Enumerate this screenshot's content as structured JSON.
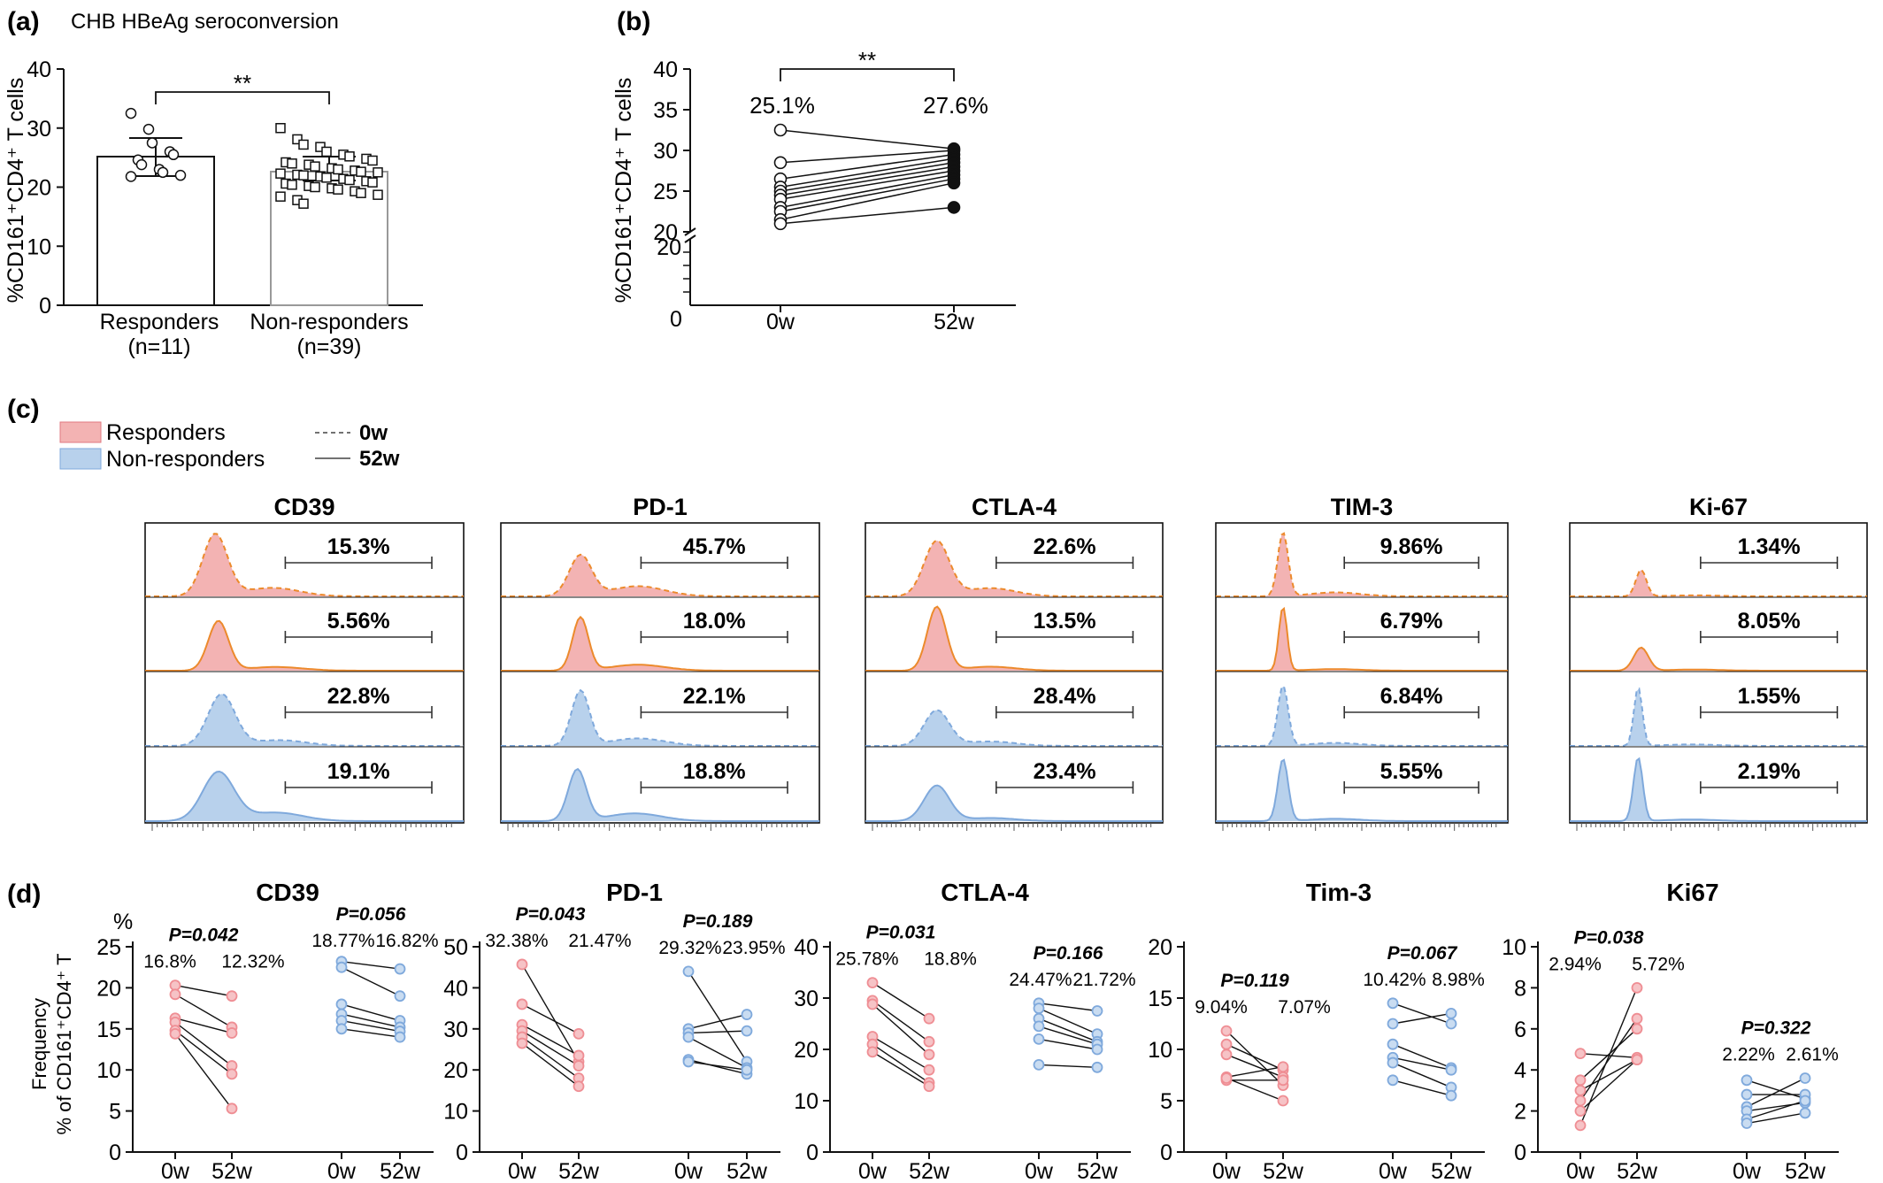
{
  "colors": {
    "responder_fill": "#f3b3b3",
    "responder_line": "#ec8a2c",
    "responder_dot": "#ef8e94",
    "nonresponder_fill": "#b8d1ec",
    "nonresponder_line": "#7fa9dc",
    "nonresponder_dot": "#7fa9dc",
    "axis": "#111111",
    "bar_gray": "#999999"
  },
  "panel_a": {
    "label": "(a)",
    "title": "CHB HBeAg seroconversion",
    "ylabel": "%CD161⁺CD4⁺ T cells",
    "yticks": [
      "0",
      "10",
      "20",
      "30",
      "40"
    ],
    "sig": "**",
    "groups": [
      {
        "name": "Responders",
        "n": "(n=11)"
      },
      {
        "name": "Non-responders",
        "n": "(n=39)"
      }
    ]
  },
  "panel_b": {
    "label": "(b)",
    "ylabel": "%CD161⁺CD4⁺ T cells",
    "yticks_upper": [
      "20",
      "25",
      "30",
      "35",
      "40"
    ],
    "yticks_lower": [
      "0",
      "20"
    ],
    "xlabels": [
      "0w",
      "52w"
    ],
    "sig": "**",
    "mean_labels": [
      "25.1%",
      "27.6%"
    ]
  },
  "panel_c": {
    "label": "(c)",
    "legend": {
      "responders": "Responders",
      "nonresponders": "Non-responders",
      "dashed": "0w",
      "solid": "52w"
    },
    "markers": [
      "CD39",
      "PD-1",
      "CTLA-4",
      "TIM-3",
      "Ki-67"
    ],
    "percents": [
      [
        "15.3%",
        "5.56%",
        "22.8%",
        "19.1%"
      ],
      [
        "45.7%",
        "18.0%",
        "22.1%",
        "18.8%"
      ],
      [
        "22.6%",
        "13.5%",
        "28.4%",
        "23.4%"
      ],
      [
        "9.86%",
        "6.79%",
        "6.84%",
        "5.55%"
      ],
      [
        "1.34%",
        "8.05%",
        "1.55%",
        "2.19%"
      ]
    ]
  },
  "panel_d": {
    "label": "(d)",
    "yunit": "%",
    "ylabel_line1": "Frequency",
    "ylabel_line2": "% of CD161⁺CD4⁺ T",
    "xlabels": [
      "0w",
      "52w",
      "0w",
      "52w"
    ],
    "titles": [
      "CD39",
      "PD-1",
      "CTLA-4",
      "Tim-3",
      "Ki67"
    ],
    "yticks": [
      [
        "0",
        "5",
        "10",
        "15",
        "20",
        "25"
      ],
      [
        "0",
        "10",
        "20",
        "30",
        "40",
        "50"
      ],
      [
        "0",
        "10",
        "20",
        "30",
        "40"
      ],
      [
        "0",
        "5",
        "10",
        "15",
        "20"
      ],
      [
        "0",
        "2",
        "4",
        "6",
        "8",
        "10"
      ]
    ],
    "pvalues": [
      [
        "P=0.042",
        "P=0.056"
      ],
      [
        "P=0.043",
        "P=0.189"
      ],
      [
        "P=0.031",
        "P=0.166"
      ],
      [
        "P=0.119",
        "P=0.067"
      ],
      [
        "P=0.038",
        "P=0.322"
      ]
    ],
    "means": [
      [
        "16.8%",
        "12.32%",
        "18.77%",
        "16.82%"
      ],
      [
        "32.38%",
        "21.47%",
        "29.32%",
        "23.95%"
      ],
      [
        "25.78%",
        "18.8%",
        "24.47%",
        "21.72%"
      ],
      [
        "9.04%",
        "7.07%",
        "10.42%",
        "8.98%"
      ],
      [
        "2.94%",
        "5.72%",
        "2.22%",
        "2.61%"
      ]
    ]
  },
  "chart_data": [
    {
      "type": "bar",
      "panel": "a",
      "categories": [
        "Responders (n=11)",
        "Non-responders (n=39)"
      ],
      "values": [
        25.1,
        22.6
      ],
      "error": [
        [
          21.8,
          28.3
        ],
        [
          21.0,
          24.6
        ]
      ],
      "ylabel": "%CD161⁺CD4⁺ T cells",
      "ylim": [
        0,
        40
      ],
      "points": {
        "Responders": [
          32.5,
          29.8,
          27.5,
          26.0,
          25.5,
          24.6,
          23.8,
          23.0,
          22.5,
          22.0,
          21.8
        ],
        "Non-responders": [
          30.0,
          28.1,
          27.2,
          26.8,
          26.0,
          25.5,
          25.2,
          24.8,
          24.5,
          24.2,
          24.0,
          23.8,
          23.5,
          23.2,
          23.0,
          22.8,
          22.6,
          22.5,
          22.3,
          22.1,
          22.0,
          21.8,
          21.6,
          21.4,
          21.2,
          21.0,
          20.8,
          20.6,
          20.4,
          20.2,
          20.0,
          19.8,
          19.6,
          19.3,
          19.0,
          18.7,
          18.4,
          17.8,
          17.2
        ]
      }
    },
    {
      "type": "line",
      "panel": "b",
      "x": [
        "0w",
        "52w"
      ],
      "ylabel": "%CD161⁺CD4⁺ T cells",
      "ylim": [
        20,
        40
      ],
      "pairs": [
        [
          32.5,
          30.2
        ],
        [
          28.5,
          30.0
        ],
        [
          26.5,
          29.5
        ],
        [
          25.5,
          29.0
        ],
        [
          25.0,
          28.5
        ],
        [
          24.5,
          28.0
        ],
        [
          24.0,
          27.5
        ],
        [
          23.0,
          27.0
        ],
        [
          22.5,
          26.5
        ],
        [
          21.5,
          26.0
        ],
        [
          21.0,
          23.0
        ]
      ]
    },
    {
      "type": "area",
      "panel": "c",
      "series": [
        "Responders 0w",
        "Responders 52w",
        "Non-responders 0w",
        "Non-responders 52w"
      ],
      "categories": [
        "CD39",
        "PD-1",
        "CTLA-4",
        "TIM-3",
        "Ki-67"
      ],
      "values": [
        [
          15.3,
          5.56,
          22.8,
          19.1
        ],
        [
          45.7,
          18.0,
          22.1,
          18.8
        ],
        [
          22.6,
          13.5,
          28.4,
          23.4
        ],
        [
          9.86,
          6.79,
          6.84,
          5.55
        ],
        [
          1.34,
          8.05,
          1.55,
          2.19
        ]
      ]
    },
    {
      "type": "line",
      "panel": "d",
      "x": [
        "0w",
        "52w"
      ],
      "panels": [
        {
          "title": "CD39",
          "ylim": [
            0,
            25
          ],
          "responders": [
            [
              20.3,
              19.0
            ],
            [
              19.2,
              15.2
            ],
            [
              16.3,
              14.5
            ],
            [
              15.8,
              10.5
            ],
            [
              14.8,
              9.5
            ],
            [
              14.4,
              5.3
            ]
          ],
          "nonresponders": [
            [
              23.2,
              22.3
            ],
            [
              22.5,
              19.0
            ],
            [
              18.0,
              16.0
            ],
            [
              16.8,
              15.2
            ],
            [
              16.0,
              14.7
            ],
            [
              15.0,
              14.0
            ]
          ]
        },
        {
          "title": "PD-1",
          "ylim": [
            0,
            50
          ],
          "responders": [
            [
              45.7,
              22.0
            ],
            [
              36.0,
              28.8
            ],
            [
              31.0,
              23.5
            ],
            [
              29.5,
              21.0
            ],
            [
              28.0,
              18.0
            ],
            [
              26.5,
              16.0
            ]
          ],
          "nonresponders": [
            [
              44.0,
              22.0
            ],
            [
              30.0,
              33.5
            ],
            [
              29.0,
              29.5
            ],
            [
              28.0,
              20.5
            ],
            [
              22.5,
              19.0
            ],
            [
              22.0,
              20.0
            ]
          ]
        },
        {
          "title": "CTLA-4",
          "ylim": [
            0,
            40
          ],
          "responders": [
            [
              33.0,
              26.0
            ],
            [
              29.5,
              21.5
            ],
            [
              28.8,
              19.0
            ],
            [
              22.5,
              16.0
            ],
            [
              21.0,
              13.5
            ],
            [
              19.5,
              12.8
            ]
          ],
          "nonresponders": [
            [
              29.0,
              27.5
            ],
            [
              28.0,
              23.0
            ],
            [
              26.0,
              21.5
            ],
            [
              24.5,
              21.0
            ],
            [
              22.0,
              20.0
            ],
            [
              17.0,
              16.5
            ]
          ]
        },
        {
          "title": "Tim-3",
          "ylim": [
            0,
            20
          ],
          "responders": [
            [
              11.8,
              6.5
            ],
            [
              10.5,
              8.0
            ],
            [
              9.5,
              7.3
            ],
            [
              7.3,
              8.3
            ],
            [
              7.0,
              7.0
            ],
            [
              7.2,
              5.0
            ]
          ],
          "nonresponders": [
            [
              14.5,
              12.5
            ],
            [
              12.5,
              13.5
            ],
            [
              10.5,
              8.2
            ],
            [
              9.2,
              8.0
            ],
            [
              8.7,
              6.3
            ],
            [
              7.0,
              5.5
            ]
          ]
        },
        {
          "title": "Ki67",
          "ylim": [
            0,
            10
          ],
          "responders": [
            [
              4.8,
              4.6
            ],
            [
              3.5,
              6.0
            ],
            [
              3.0,
              4.5
            ],
            [
              2.5,
              6.5
            ],
            [
              2.0,
              4.5
            ],
            [
              1.3,
              8.0
            ]
          ],
          "nonresponders": [
            [
              3.5,
              2.6
            ],
            [
              2.8,
              2.8
            ],
            [
              2.2,
              3.6
            ],
            [
              2.0,
              2.4
            ],
            [
              1.6,
              2.5
            ],
            [
              1.4,
              1.9
            ]
          ]
        }
      ]
    }
  ]
}
